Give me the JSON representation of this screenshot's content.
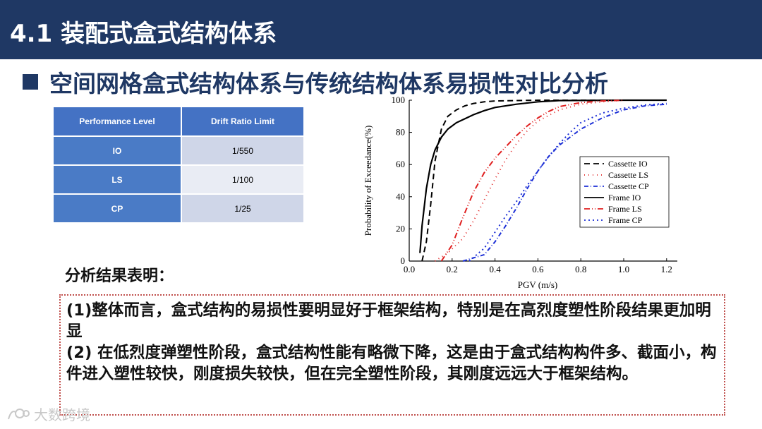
{
  "header": {
    "title": "4.1 装配式盒式结构体系"
  },
  "subtitle": {
    "text": "空间网格盒式结构体系与传统结构体系易损性对比分析"
  },
  "table": {
    "headers": [
      "Performance Level",
      "Drift Ratio Limit"
    ],
    "rows": [
      {
        "level": "IO",
        "limit": "1/550"
      },
      {
        "level": "LS",
        "limit": "1/100"
      },
      {
        "level": "CP",
        "limit": "1/25"
      }
    ]
  },
  "chart_data": {
    "type": "line",
    "xlabel": "PGV (m/s)",
    "ylabel": "Probability of Exceedance(%)",
    "xlim": [
      0,
      1.25
    ],
    "ylim": [
      0,
      100
    ],
    "xticks": [
      "0.0",
      "0.2",
      "0.4",
      "0.6",
      "0.8",
      "1.0",
      "1.2"
    ],
    "yticks": [
      "0",
      "20",
      "40",
      "60",
      "80",
      "100"
    ],
    "grid": false,
    "legend_position": "right",
    "series": [
      {
        "name": "Cassette IO",
        "color": "#000000",
        "dash": "8,5",
        "x": [
          0.06,
          0.08,
          0.1,
          0.12,
          0.15,
          0.18,
          0.22,
          0.26,
          0.3,
          0.35,
          0.4,
          0.5,
          0.6,
          0.7,
          1.0,
          1.2
        ],
        "y": [
          0,
          12,
          35,
          62,
          82,
          90,
          94,
          96.5,
          98,
          99,
          99.5,
          99.8,
          100,
          100,
          100,
          100
        ]
      },
      {
        "name": "Cassette LS",
        "color": "#e02020",
        "dash": "1,5",
        "x": [
          0.12,
          0.18,
          0.25,
          0.3,
          0.35,
          0.4,
          0.45,
          0.5,
          0.55,
          0.6,
          0.7,
          0.8,
          0.9,
          1.0
        ],
        "y": [
          0,
          5,
          14,
          25,
          38,
          51,
          63,
          73,
          81,
          87,
          94,
          97.5,
          99,
          100
        ]
      },
      {
        "name": "Cassette CP",
        "color": "#1c2fd6",
        "dash": "6,3,1,3",
        "x": [
          0.25,
          0.35,
          0.4,
          0.45,
          0.5,
          0.55,
          0.6,
          0.65,
          0.7,
          0.8,
          0.9,
          1.0,
          1.1,
          1.2
        ],
        "y": [
          0,
          4,
          12,
          22,
          33,
          45,
          56,
          65,
          72,
          82,
          89,
          94,
          96.5,
          97.5
        ]
      },
      {
        "name": "Frame IO",
        "color": "#000000",
        "dash": "",
        "x": [
          0.05,
          0.06,
          0.08,
          0.1,
          0.12,
          0.15,
          0.18,
          0.22,
          0.26,
          0.3,
          0.35,
          0.4,
          0.5,
          0.6,
          0.7,
          1.0,
          1.2
        ],
        "y": [
          5,
          22,
          45,
          60,
          69,
          77,
          82,
          86,
          88.5,
          91,
          93.5,
          95.5,
          97.5,
          99,
          99.8,
          100,
          100
        ]
      },
      {
        "name": "Frame LS",
        "color": "#e02020",
        "dash": "8,3,1,3,1,3",
        "x": [
          0.15,
          0.2,
          0.25,
          0.3,
          0.35,
          0.4,
          0.45,
          0.5,
          0.55,
          0.6,
          0.65,
          0.7,
          0.8,
          0.9,
          1.0
        ],
        "y": [
          0,
          10,
          27,
          43,
          55,
          64,
          71,
          78,
          84,
          89,
          93,
          96,
          98.5,
          99.5,
          100
        ]
      },
      {
        "name": "Frame CP",
        "color": "#1c2fd6",
        "dash": "2,4",
        "x": [
          0.28,
          0.35,
          0.4,
          0.45,
          0.5,
          0.55,
          0.6,
          0.65,
          0.7,
          0.75,
          0.8,
          0.9,
          1.0,
          1.1,
          1.2
        ],
        "y": [
          0,
          8,
          18,
          28,
          37,
          47,
          56,
          65,
          73,
          80,
          86,
          92,
          95,
          97,
          98
        ]
      }
    ]
  },
  "analysis": {
    "title": "分析结果表明：",
    "paragraphs": [
      "(1)整体而言，盒式结构的易损性要明显好于框架结构，特别是在高烈度塑性阶段结果更加明显",
      "(2)  在低烈度弹塑性阶段，盒式结构性能有略微下降，这是由于盒式结构构件多、截面小，构件进入塑性较快，刚度损失较快，但在完全塑性阶段，其刚度远远大于框架结构。"
    ]
  },
  "watermark": {
    "text": "大数跨境"
  }
}
